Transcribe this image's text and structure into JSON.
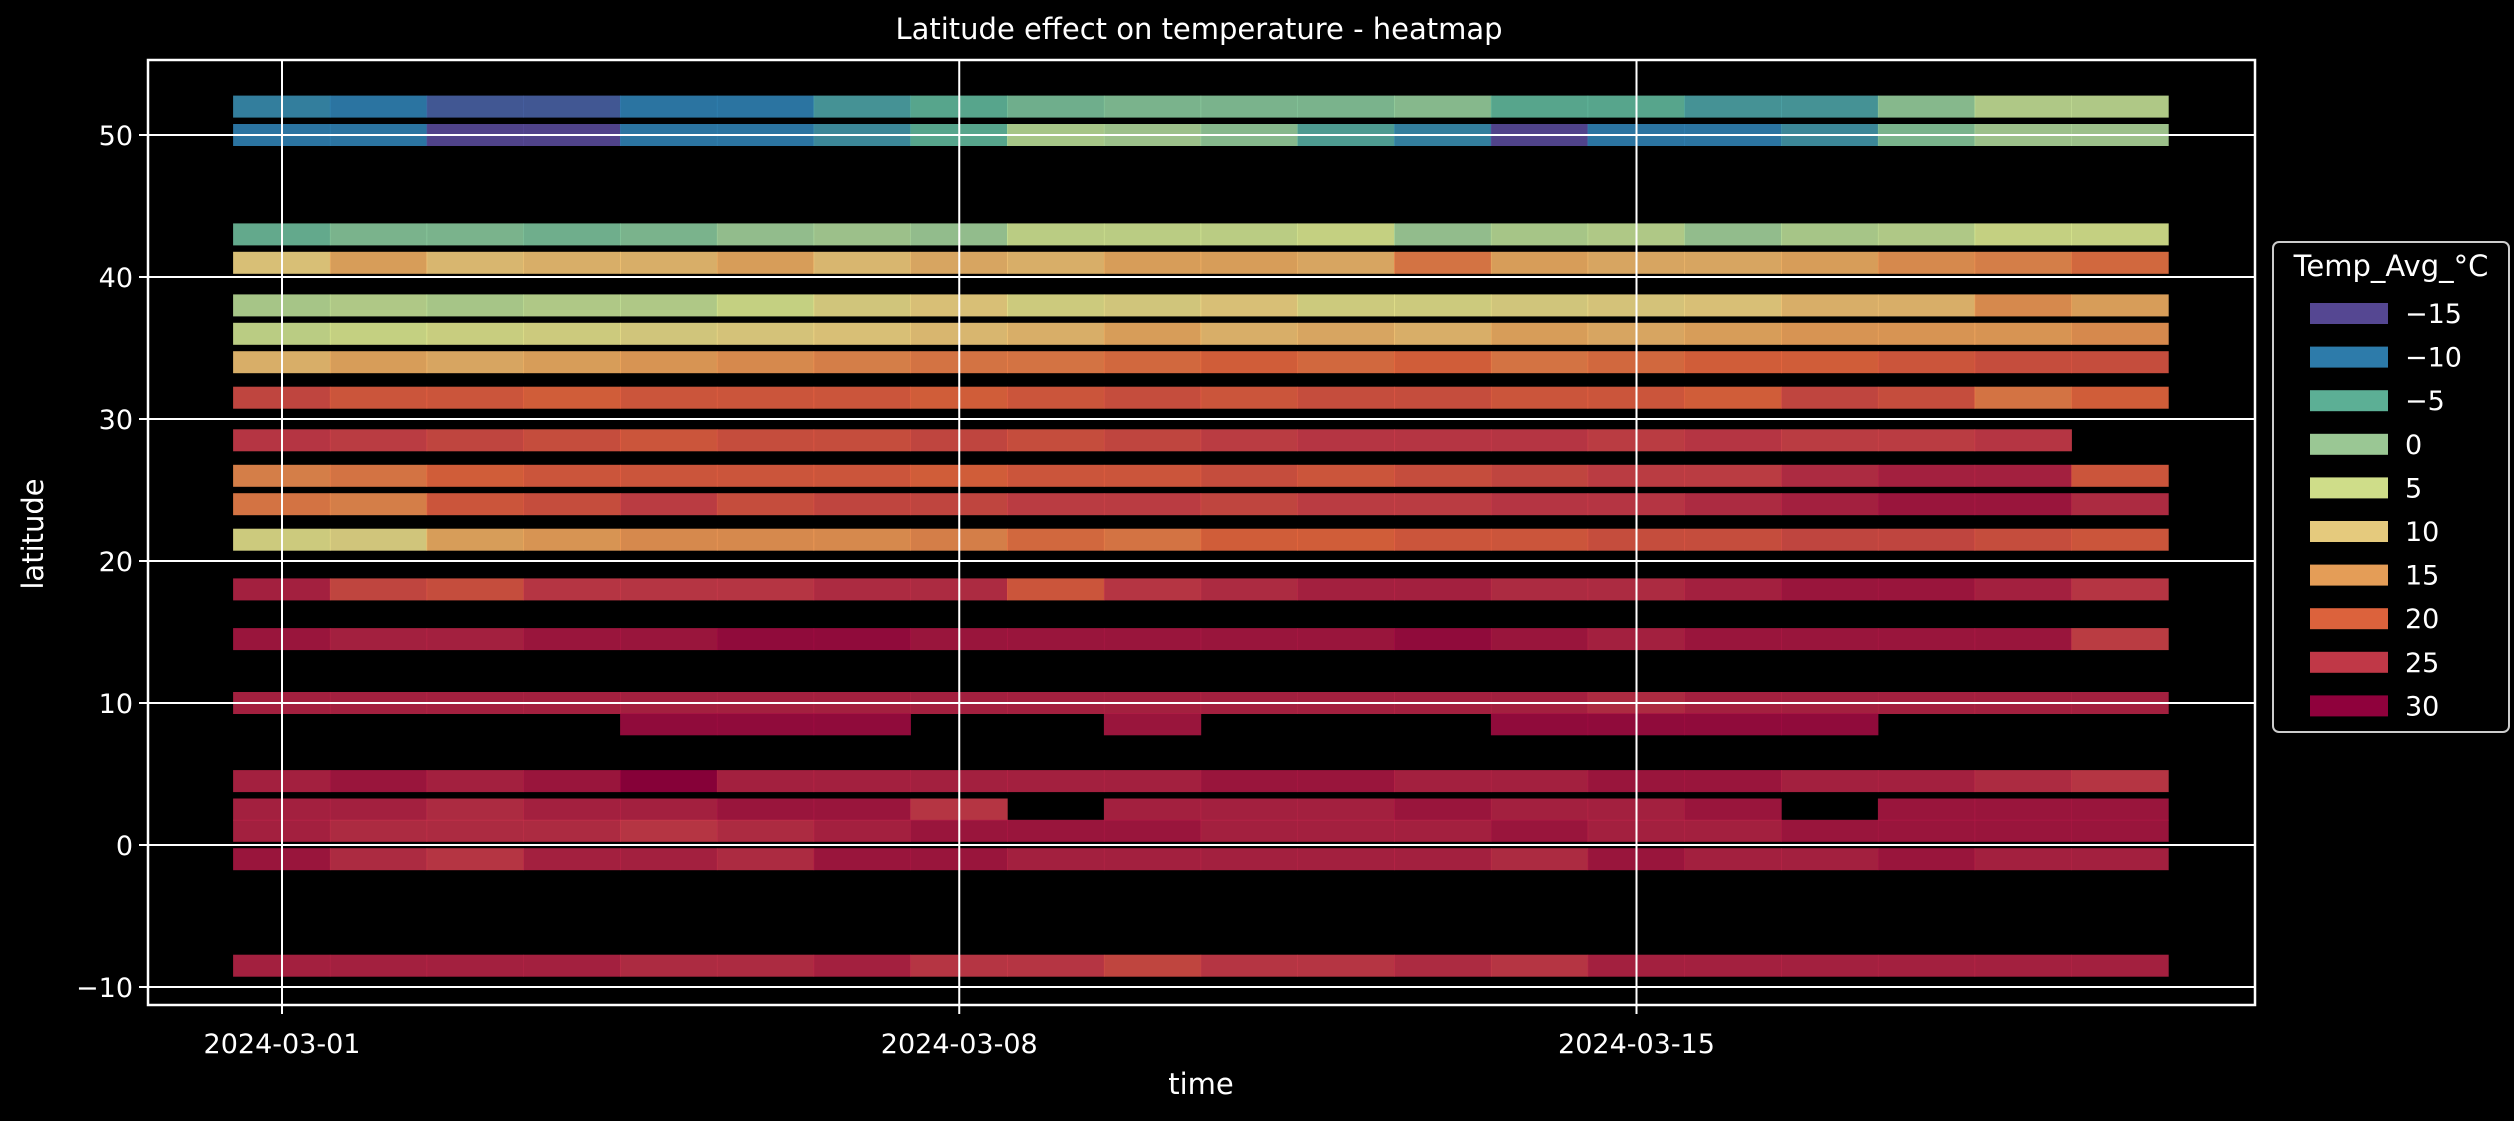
{
  "chart_data": {
    "type": "heatmap",
    "title": "Latitude effect on temperature - heatmap",
    "xlabel": "time",
    "ylabel": "latitude",
    "x_start_date": "2024-02-29",
    "x_days": 20,
    "x_ticks": [
      "2024-03-01",
      "2024-03-08",
      "2024-03-15"
    ],
    "y_ticks": [
      "50",
      "40",
      "30",
      "20",
      "10",
      "0",
      "−10"
    ],
    "ylim": [
      -11.2,
      55.0
    ],
    "grid": true,
    "legend": {
      "title": "Temp_Avg_°C",
      "position": "right",
      "entries": [
        {
          "label": "−15",
          "value": -15,
          "color": "#5e4fa2"
        },
        {
          "label": "−10",
          "value": -10,
          "color": "#3288bd"
        },
        {
          "label": "−5",
          "value": -5,
          "color": "#66c2a5"
        },
        {
          "label": "0",
          "value": 0,
          "color": "#abdda4"
        },
        {
          "label": "5",
          "value": 5,
          "color": "#e6f598"
        },
        {
          "label": "10",
          "value": 10,
          "color": "#fee08b"
        },
        {
          "label": "15",
          "value": 15,
          "color": "#fdae61"
        },
        {
          "label": "20",
          "value": 20,
          "color": "#f46d43"
        },
        {
          "label": "25",
          "value": 25,
          "color": "#d53e4f"
        },
        {
          "label": "30",
          "value": 30,
          "color": "#9e0142"
        }
      ]
    },
    "rows": [
      {
        "latitude": 52.0,
        "temps": [
          -9,
          -10,
          -13,
          -13,
          -10,
          -10,
          -7,
          -5,
          -3,
          -2,
          -2,
          -2,
          -1,
          -5,
          -5,
          -7,
          -7,
          -1,
          3,
          3
        ]
      },
      {
        "latitude": 50.0,
        "temps": [
          -10,
          -10,
          -16,
          -15,
          -10,
          -10,
          -8,
          -5,
          2,
          1,
          -1,
          -6,
          -9,
          -15,
          -10,
          -10,
          -8,
          -2,
          1,
          1
        ]
      },
      {
        "latitude": 43.0,
        "temps": [
          -4,
          -2,
          -2,
          -3,
          -2,
          0,
          1,
          0,
          4,
          4,
          4,
          5,
          0,
          2,
          3,
          0,
          2,
          3,
          5,
          5
        ]
      },
      {
        "latitude": 41.0,
        "temps": [
          10,
          14,
          11,
          12,
          12,
          14,
          11,
          13,
          12,
          14,
          14,
          13,
          18,
          14,
          13,
          13,
          14,
          16,
          17,
          19
        ]
      },
      {
        "latitude": 38.0,
        "temps": [
          2,
          3,
          2,
          3,
          3,
          5,
          8,
          10,
          7,
          8,
          10,
          7,
          7,
          8,
          9,
          10,
          12,
          12,
          16,
          14
        ]
      },
      {
        "latitude": 36.0,
        "temps": [
          4,
          5,
          6,
          7,
          8,
          9,
          10,
          11,
          12,
          14,
          12,
          13,
          12,
          14,
          13,
          14,
          15,
          15,
          15,
          16
        ]
      },
      {
        "latitude": 34.0,
        "temps": [
          12,
          14,
          13,
          14,
          15,
          16,
          17,
          18,
          18,
          19,
          20,
          19,
          20,
          18,
          19,
          20,
          20,
          21,
          22,
          22
        ]
      },
      {
        "latitude": 31.5,
        "temps": [
          23,
          21,
          21,
          20,
          21,
          21,
          21,
          20,
          21,
          22,
          21,
          22,
          22,
          21,
          21,
          20,
          23,
          22,
          18,
          20
        ]
      },
      {
        "latitude": 28.5,
        "temps": [
          25,
          24,
          23,
          22,
          21,
          22,
          22,
          23,
          22,
          23,
          24,
          25,
          25,
          25,
          24,
          25,
          24,
          24,
          25,
          null
        ]
      },
      {
        "latitude": 26.0,
        "temps": [
          17,
          18,
          20,
          21,
          21,
          21,
          21,
          20,
          21,
          21,
          22,
          21,
          22,
          23,
          24,
          24,
          26,
          27,
          27,
          21
        ]
      },
      {
        "latitude": 24.0,
        "temps": [
          18,
          17,
          21,
          22,
          24,
          22,
          23,
          23,
          24,
          24,
          23,
          24,
          24,
          25,
          25,
          26,
          27,
          28,
          28,
          26
        ]
      },
      {
        "latitude": 21.5,
        "temps": [
          7,
          8,
          14,
          15,
          16,
          16,
          16,
          17,
          19,
          18,
          20,
          20,
          21,
          21,
          22,
          22,
          23,
          23,
          22,
          21
        ]
      },
      {
        "latitude": 18.0,
        "temps": [
          27,
          23,
          22,
          25,
          25,
          25,
          26,
          26,
          21,
          25,
          26,
          27,
          27,
          26,
          26,
          27,
          28,
          28,
          27,
          25
        ]
      },
      {
        "latitude": 14.5,
        "temps": [
          28,
          27,
          27,
          28,
          28,
          29,
          29,
          28,
          28,
          28,
          28,
          28,
          29,
          28,
          27,
          28,
          28,
          28,
          28,
          24
        ]
      },
      {
        "latitude": 10.0,
        "temps": [
          27,
          27,
          27,
          27,
          27,
          27,
          27,
          27,
          27,
          27,
          27,
          27,
          27,
          27,
          26,
          27,
          27,
          27,
          27,
          27
        ]
      },
      {
        "latitude": 8.5,
        "temps": [
          null,
          null,
          null,
          null,
          29,
          29,
          29,
          null,
          null,
          28,
          null,
          null,
          null,
          29,
          29,
          29,
          29,
          null,
          null,
          null
        ]
      },
      {
        "latitude": 4.5,
        "temps": [
          27,
          28,
          27,
          28,
          31,
          27,
          27,
          27,
          27,
          27,
          28,
          28,
          27,
          27,
          28,
          28,
          27,
          27,
          26,
          25
        ]
      },
      {
        "latitude": 2.5,
        "temps": [
          27,
          27,
          26,
          27,
          27,
          28,
          28,
          25,
          null,
          27,
          27,
          27,
          28,
          27,
          27,
          28,
          null,
          28,
          28,
          28
        ]
      },
      {
        "latitude": 1.0,
        "temps": [
          27,
          26,
          26,
          26,
          25,
          26,
          27,
          28,
          28,
          28,
          27,
          27,
          27,
          28,
          27,
          27,
          28,
          28,
          28,
          28
        ]
      },
      {
        "latitude": -1.0,
        "temps": [
          28,
          26,
          25,
          27,
          27,
          26,
          28,
          28,
          27,
          27,
          27,
          27,
          27,
          26,
          28,
          27,
          27,
          28,
          27,
          27
        ]
      },
      {
        "latitude": -8.5,
        "temps": [
          27,
          27,
          27,
          27,
          26,
          26,
          27,
          25,
          25,
          23,
          25,
          25,
          26,
          25,
          27,
          27,
          27,
          27,
          27,
          27
        ]
      }
    ]
  }
}
